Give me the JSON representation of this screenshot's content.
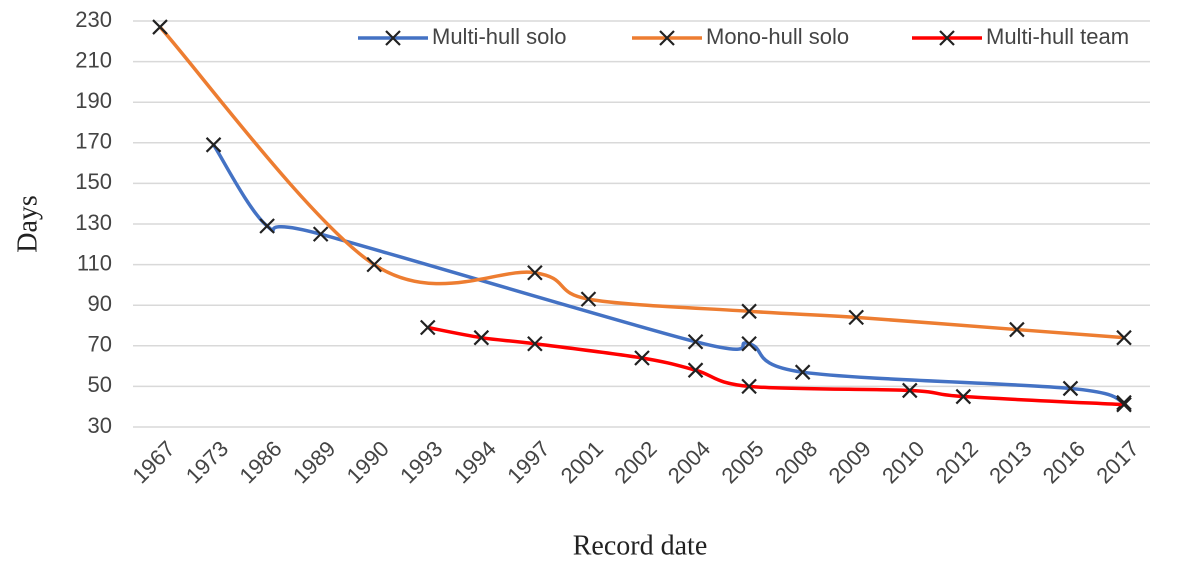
{
  "chart_data": {
    "type": "line",
    "x_label": "Record date",
    "y_label": "Days",
    "categories": [
      "1967",
      "1973",
      "1986",
      "1989",
      "1990",
      "1993",
      "1994",
      "1997",
      "2001",
      "2002",
      "2004",
      "2005",
      "2008",
      "2009",
      "2010",
      "2012",
      "2013",
      "2016",
      "2017"
    ],
    "series": [
      {
        "name": "Multi-hull solo",
        "color": "#4472c4",
        "values": [
          null,
          169,
          129,
          125,
          null,
          null,
          null,
          null,
          null,
          null,
          72,
          71,
          57,
          null,
          null,
          null,
          null,
          49,
          42
        ]
      },
      {
        "name": "Mono-hull solo",
        "color": "#ed7d31",
        "values": [
          227,
          null,
          null,
          null,
          110,
          null,
          null,
          106,
          93,
          null,
          null,
          87,
          null,
          84,
          null,
          null,
          78,
          null,
          74
        ]
      },
      {
        "name": "Multi-hull team",
        "color": "#ff0000",
        "values": [
          null,
          null,
          null,
          null,
          null,
          79,
          74,
          71,
          null,
          64,
          58,
          50,
          null,
          null,
          48,
          45,
          null,
          null,
          41
        ]
      }
    ],
    "span_gaps": true,
    "smooth": true,
    "marker_color": "#222222",
    "ylim": [
      30,
      230
    ],
    "yticks": [
      30,
      50,
      70,
      90,
      110,
      130,
      150,
      170,
      190,
      210,
      230
    ],
    "grid": true,
    "legend": "top-right"
  }
}
